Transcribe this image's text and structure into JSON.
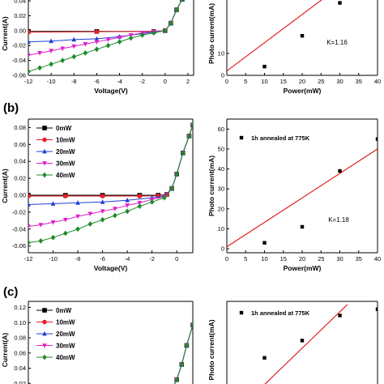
{
  "panel_labels": [
    "(b)",
    "(c)"
  ],
  "chart_data": [
    {
      "id": "a-iv",
      "type": "line",
      "xlabel": "Voltage(V)",
      "ylabel": "Current(A)",
      "xticks": [
        "-12",
        "-10",
        "-8",
        "-6",
        "-4",
        "-2",
        "0",
        "2"
      ],
      "yticks": [
        "0.04",
        "0.02",
        "0.00",
        "-0.02",
        "-0.04",
        "-0.06"
      ],
      "xlim": [
        -12,
        2.5
      ],
      "ylim": [
        -0.06,
        0.052
      ],
      "series": [
        {
          "color": "#000000",
          "marker": "square",
          "points": [
            [
              -12,
              -0.001
            ],
            [
              -6,
              -0.001
            ],
            [
              -1,
              -0.001
            ],
            [
              0,
              0.0
            ],
            [
              0.5,
              0.01
            ],
            [
              1,
              0.028
            ],
            [
              1.5,
              0.042
            ],
            [
              2,
              0.05
            ]
          ]
        },
        {
          "color": "#e8202a",
          "marker": "circle",
          "points": [
            [
              -12,
              -0.002
            ],
            [
              -6,
              -0.0015
            ],
            [
              -1,
              -0.001
            ],
            [
              0,
              0.0
            ],
            [
              0.5,
              0.01
            ],
            [
              1,
              0.028
            ],
            [
              1.5,
              0.042
            ],
            [
              2,
              0.05
            ]
          ]
        },
        {
          "color": "#1f3fd6",
          "marker": "triangle-up",
          "points": [
            [
              -12,
              -0.015
            ],
            [
              -10,
              -0.014
            ],
            [
              -8,
              -0.012
            ],
            [
              -6,
              -0.011
            ],
            [
              -4,
              -0.008
            ],
            [
              -2,
              -0.004
            ],
            [
              -1,
              -0.002
            ],
            [
              0,
              0.0
            ],
            [
              0.5,
              0.01
            ],
            [
              1,
              0.028
            ],
            [
              1.5,
              0.042
            ],
            [
              2,
              0.05
            ]
          ]
        },
        {
          "color": "#e020c8",
          "marker": "triangle-down",
          "points": [
            [
              -12,
              -0.033
            ],
            [
              -11,
              -0.03
            ],
            [
              -10,
              -0.027
            ],
            [
              -9,
              -0.024
            ],
            [
              -8,
              -0.021
            ],
            [
              -7,
              -0.018
            ],
            [
              -6,
              -0.015
            ],
            [
              -5,
              -0.012
            ],
            [
              -4,
              -0.009
            ],
            [
              -3,
              -0.006
            ],
            [
              -2,
              -0.003
            ],
            [
              -1,
              -0.001
            ],
            [
              0,
              0.0
            ],
            [
              0.5,
              0.01
            ],
            [
              1,
              0.028
            ],
            [
              1.5,
              0.042
            ],
            [
              2,
              0.05
            ]
          ]
        },
        {
          "color": "#1e8a2a",
          "marker": "diamond",
          "points": [
            [
              -12,
              -0.055
            ],
            [
              -11,
              -0.05
            ],
            [
              -10,
              -0.045
            ],
            [
              -9,
              -0.04
            ],
            [
              -8,
              -0.035
            ],
            [
              -7,
              -0.03
            ],
            [
              -6,
              -0.025
            ],
            [
              -5,
              -0.02
            ],
            [
              -4,
              -0.015
            ],
            [
              -3,
              -0.01
            ],
            [
              -2,
              -0.006
            ],
            [
              -1,
              -0.003
            ],
            [
              0,
              0.0
            ],
            [
              0.5,
              0.01
            ],
            [
              1,
              0.028
            ],
            [
              1.5,
              0.042
            ],
            [
              2,
              0.05
            ]
          ]
        }
      ]
    },
    {
      "id": "a-photo",
      "type": "scatter",
      "xlabel": "Power(mW)",
      "ylabel": "Photo current(mA)",
      "xticks": [
        "0",
        "5",
        "10",
        "15",
        "20",
        "25",
        "30",
        "35",
        "40"
      ],
      "yticks": [
        "10",
        "0"
      ],
      "xlim": [
        0,
        40
      ],
      "ylim": [
        0,
        38
      ],
      "points": [
        [
          10,
          4
        ],
        [
          20,
          18
        ],
        [
          30,
          33
        ]
      ],
      "fit_line": [
        [
          0,
          2
        ],
        [
          28,
          38
        ]
      ],
      "annotation": "K=1.16"
    },
    {
      "id": "b-iv",
      "type": "line",
      "xlabel": "Voltage(V)",
      "ylabel": "Current(A)",
      "xticks": [
        "-12",
        "-10",
        "-8",
        "-6",
        "-4",
        "-2",
        "0"
      ],
      "yticks": [
        "0.08",
        "0.06",
        "0.04",
        "0.02",
        "0.00",
        "-0.02",
        "-0.04",
        "-0.06"
      ],
      "xlim": [
        -12,
        1.3
      ],
      "ylim": [
        -0.068,
        0.09
      ],
      "legend": [
        "0mW",
        "10mW",
        "20mW",
        "30mW",
        "40mW"
      ],
      "series": [
        {
          "name": "0mW",
          "color": "#000000",
          "marker": "square",
          "points": [
            [
              -12,
              0.0
            ],
            [
              -9,
              0.0
            ],
            [
              -6,
              0.0
            ],
            [
              -3,
              0.0
            ],
            [
              -1.5,
              0.0
            ],
            [
              -0.8,
              0.001
            ],
            [
              -0.4,
              0.008
            ],
            [
              0,
              0.025
            ],
            [
              0.5,
              0.05
            ],
            [
              1,
              0.07
            ],
            [
              1.3,
              0.083
            ]
          ]
        },
        {
          "name": "10mW",
          "color": "#e8202a",
          "marker": "circle",
          "points": [
            [
              -12,
              -0.001
            ],
            [
              -9,
              -0.001
            ],
            [
              -6,
              -0.001
            ],
            [
              -3,
              -0.001
            ],
            [
              -1.5,
              -0.0008
            ],
            [
              -0.8,
              0.001
            ],
            [
              -0.4,
              0.008
            ],
            [
              0,
              0.025
            ],
            [
              0.5,
              0.05
            ],
            [
              1,
              0.07
            ],
            [
              1.3,
              0.083
            ]
          ]
        },
        {
          "name": "20mW",
          "color": "#1f3fd6",
          "marker": "triangle-up",
          "points": [
            [
              -12,
              -0.011
            ],
            [
              -10,
              -0.01
            ],
            [
              -8,
              -0.009
            ],
            [
              -6,
              -0.008
            ],
            [
              -4,
              -0.006
            ],
            [
              -2,
              -0.003
            ],
            [
              -1,
              -0.001
            ],
            [
              -0.4,
              0.008
            ],
            [
              0,
              0.025
            ],
            [
              0.5,
              0.05
            ],
            [
              1,
              0.07
            ],
            [
              1.3,
              0.083
            ]
          ]
        },
        {
          "name": "30mW",
          "color": "#e020c8",
          "marker": "triangle-down",
          "points": [
            [
              -12,
              -0.037
            ],
            [
              -11,
              -0.035
            ],
            [
              -10,
              -0.032
            ],
            [
              -9,
              -0.029
            ],
            [
              -8,
              -0.025
            ],
            [
              -7,
              -0.022
            ],
            [
              -6,
              -0.019
            ],
            [
              -5,
              -0.016
            ],
            [
              -4,
              -0.012
            ],
            [
              -3,
              -0.009
            ],
            [
              -2,
              -0.005
            ],
            [
              -1,
              -0.002
            ],
            [
              -0.4,
              0.008
            ],
            [
              0,
              0.025
            ],
            [
              0.5,
              0.05
            ],
            [
              1,
              0.07
            ],
            [
              1.3,
              0.083
            ]
          ]
        },
        {
          "name": "40mW",
          "color": "#1e8a2a",
          "marker": "diamond",
          "points": [
            [
              -12,
              -0.056
            ],
            [
              -11,
              -0.054
            ],
            [
              -10,
              -0.05
            ],
            [
              -9,
              -0.045
            ],
            [
              -8,
              -0.04
            ],
            [
              -7,
              -0.034
            ],
            [
              -6,
              -0.029
            ],
            [
              -5,
              -0.024
            ],
            [
              -4,
              -0.019
            ],
            [
              -3,
              -0.013
            ],
            [
              -2,
              -0.008
            ],
            [
              -1,
              -0.003
            ],
            [
              -0.4,
              0.008
            ],
            [
              0,
              0.025
            ],
            [
              0.5,
              0.05
            ],
            [
              1,
              0.07
            ],
            [
              1.3,
              0.083
            ]
          ]
        }
      ]
    },
    {
      "id": "b-photo",
      "type": "scatter",
      "xlabel": "Power(mW)",
      "ylabel": "Photo current(mA)",
      "xticks": [
        "0",
        "5",
        "10",
        "15",
        "20",
        "25",
        "30",
        "35",
        "40"
      ],
      "yticks": [
        "60",
        "50",
        "40",
        "30",
        "20",
        "10",
        "0"
      ],
      "xlim": [
        0,
        40
      ],
      "ylim": [
        -2,
        65
      ],
      "points": [
        [
          10,
          3
        ],
        [
          20,
          11
        ],
        [
          30,
          39
        ],
        [
          40,
          55
        ]
      ],
      "fit_line": [
        [
          0,
          1
        ],
        [
          40,
          50
        ]
      ],
      "legend": [
        "1h annealed at 775K"
      ],
      "annotation": "K=1.18"
    },
    {
      "id": "c-iv",
      "type": "line",
      "xlabel": "",
      "ylabel": "Current(A)",
      "xticks": [],
      "yticks": [
        "0.12",
        "0.10",
        "0.08",
        "0.06",
        "0.04",
        "0.02"
      ],
      "xlim": [
        -12,
        1.3
      ],
      "ylim": [
        0.0,
        0.128
      ],
      "legend": [
        "0mW",
        "10mW",
        "20mW",
        "30mW",
        "40mW"
      ],
      "series": [
        {
          "name": "0mW",
          "color": "#000000",
          "marker": "square",
          "points": [
            [
              -0.8,
              0.005
            ],
            [
              -0.4,
              0.012
            ],
            [
              0,
              0.025
            ],
            [
              0.4,
              0.045
            ],
            [
              0.8,
              0.07
            ],
            [
              1.3,
              0.097
            ]
          ]
        },
        {
          "name": "10mW",
          "color": "#e8202a",
          "marker": "circle",
          "points": [
            [
              -0.8,
              0.005
            ],
            [
              -0.4,
              0.012
            ],
            [
              0,
              0.025
            ],
            [
              0.4,
              0.045
            ],
            [
              0.8,
              0.07
            ],
            [
              1.3,
              0.097
            ]
          ]
        },
        {
          "name": "20mW",
          "color": "#1f3fd6",
          "marker": "triangle-up",
          "points": [
            [
              -0.8,
              0.005
            ],
            [
              -0.4,
              0.012
            ],
            [
              0,
              0.025
            ],
            [
              0.4,
              0.045
            ],
            [
              0.8,
              0.07
            ],
            [
              1.3,
              0.097
            ]
          ]
        },
        {
          "name": "30mW",
          "color": "#e020c8",
          "marker": "triangle-down",
          "points": [
            [
              -0.8,
              0.005
            ],
            [
              -0.4,
              0.012
            ],
            [
              0,
              0.025
            ],
            [
              0.4,
              0.045
            ],
            [
              0.8,
              0.07
            ],
            [
              1.3,
              0.097
            ]
          ]
        },
        {
          "name": "40mW",
          "color": "#1e8a2a",
          "marker": "diamond",
          "points": [
            [
              -0.8,
              0.005
            ],
            [
              -0.4,
              0.012
            ],
            [
              0,
              0.025
            ],
            [
              0.4,
              0.045
            ],
            [
              0.8,
              0.07
            ],
            [
              1.3,
              0.097
            ]
          ]
        }
      ]
    },
    {
      "id": "c-photo",
      "type": "scatter",
      "xlabel": "",
      "ylabel": "Photo current(mA)",
      "xticks": [],
      "yticks": [],
      "xlim": [
        0,
        40
      ],
      "ylim": [
        0,
        62
      ],
      "points": [
        [
          10,
          26
        ],
        [
          20,
          37
        ],
        [
          30,
          53
        ],
        [
          40,
          57
        ]
      ],
      "fit_line": [
        [
          7,
          2
        ],
        [
          32,
          60
        ]
      ],
      "legend": [
        "1h annealed at 775K"
      ]
    }
  ]
}
